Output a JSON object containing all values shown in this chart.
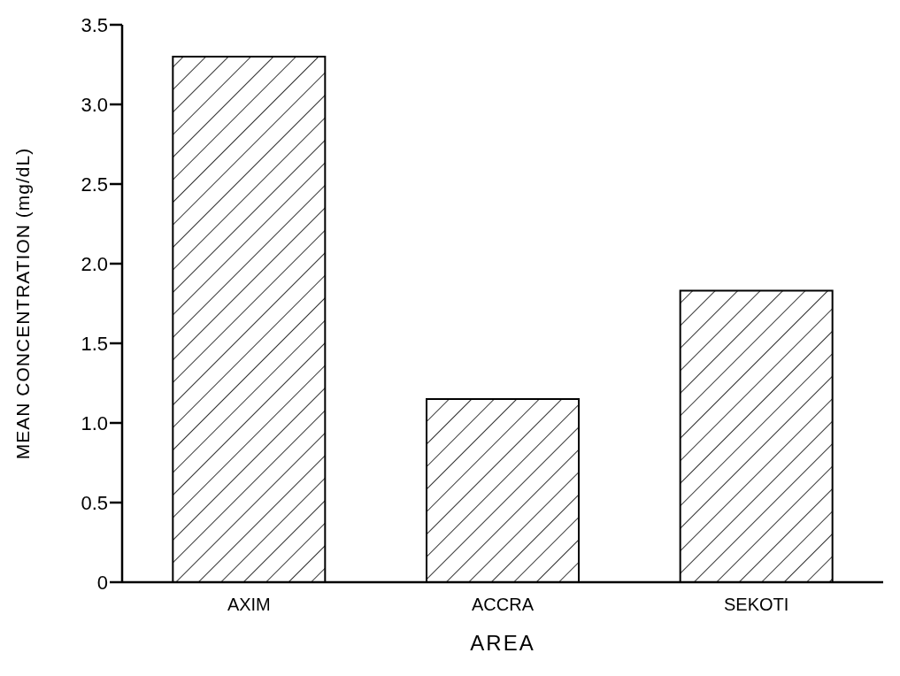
{
  "chart_data": {
    "type": "bar",
    "xlabel": "AREA",
    "ylabel": "MEAN CONCENTRATION (mg/dL)",
    "categories": [
      "AXIM",
      "ACCRA",
      "SEKOTI"
    ],
    "values": [
      3.3,
      1.15,
      1.83
    ],
    "color": "#000000",
    "ylim": [
      0,
      3.5
    ],
    "yticks": [
      0,
      0.5,
      {
        "value": 1,
        "label": "1.0"
      },
      1.5,
      {
        "value": 2,
        "label": "2.0"
      },
      2.5,
      {
        "value": 3,
        "label": "3.0"
      },
      3.5
    ],
    "grid": false,
    "legend": false
  }
}
